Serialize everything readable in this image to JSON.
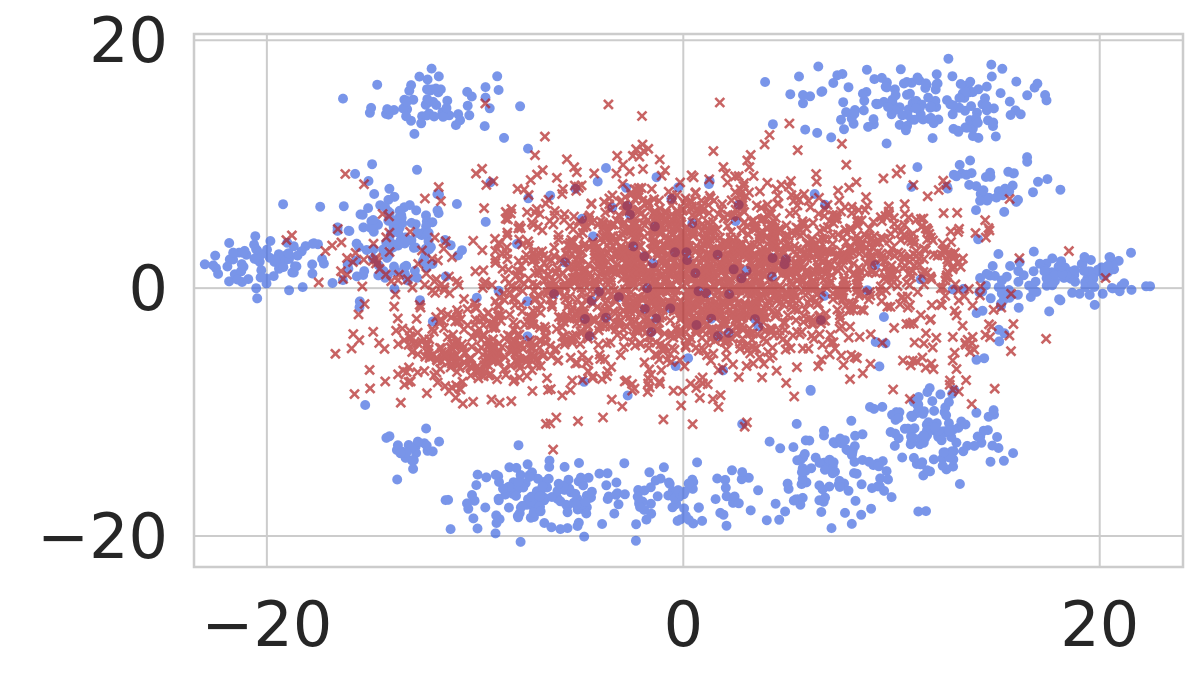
{
  "chart_data": {
    "type": "scatter",
    "title": "",
    "xlabel": "",
    "ylabel": "",
    "xlim": [
      -23.5,
      24.0
    ],
    "ylim": [
      -22.5,
      20.5
    ],
    "x_ticks": [
      {
        "value": -20,
        "label": "−20"
      },
      {
        "value": 0,
        "label": "0"
      },
      {
        "value": 20,
        "label": "20"
      }
    ],
    "y_ticks": [
      {
        "value": 20,
        "label": "20"
      },
      {
        "value": 0,
        "label": "0"
      },
      {
        "value": -20,
        "label": "−20"
      }
    ],
    "grid": true,
    "legend": "none",
    "series": [
      {
        "marker": "circle",
        "color": "#4169E1",
        "alpha": 0.7,
        "clusters": [
          {
            "center": [
              -20,
              2
            ],
            "spread": [
              2.5,
              1.8
            ],
            "count": 70
          },
          {
            "center": [
              -14,
              4
            ],
            "spread": [
              2.5,
              4.0
            ],
            "count": 130
          },
          {
            "center": [
              -12,
              15
            ],
            "spread": [
              2.5,
              2.0
            ],
            "count": 60
          },
          {
            "center": [
              -13,
              -13
            ],
            "spread": [
              1.2,
              1.2
            ],
            "count": 25
          },
          {
            "center": [
              -7,
              -17
            ],
            "spread": [
              3.5,
              2.2
            ],
            "count": 130
          },
          {
            "center": [
              0,
              -17
            ],
            "spread": [
              3.5,
              2.0
            ],
            "count": 70
          },
          {
            "center": [
              7,
              -15
            ],
            "spread": [
              3.0,
              3.0
            ],
            "count": 90
          },
          {
            "center": [
              12,
              -12
            ],
            "spread": [
              3.0,
              3.5
            ],
            "count": 120
          },
          {
            "center": [
              11,
              15
            ],
            "spread": [
              4.5,
              2.5
            ],
            "count": 150
          },
          {
            "center": [
              15,
              8
            ],
            "spread": [
              3.0,
              2.0
            ],
            "count": 40
          },
          {
            "center": [
              19,
              1
            ],
            "spread": [
              2.5,
              1.5
            ],
            "count": 80
          },
          {
            "center": [
              15,
              0
            ],
            "spread": [
              2.0,
              3.0
            ],
            "count": 40
          },
          {
            "center": [
              0,
              0
            ],
            "spread": [
              9.0,
              9.0
            ],
            "count": 90
          }
        ]
      },
      {
        "marker": "x",
        "color": "#B22222",
        "alpha": 0.7,
        "clusters": [
          {
            "center": [
              0,
              1
            ],
            "spread": [
              8.0,
              6.5
            ],
            "count": 1900
          },
          {
            "center": [
              -10,
              -5
            ],
            "spread": [
              4.0,
              3.0
            ],
            "count": 250
          },
          {
            "center": [
              10,
              3
            ],
            "spread": [
              4.0,
              4.0
            ],
            "count": 200
          },
          {
            "center": [
              -15,
              1
            ],
            "spread": [
              3.0,
              4.0
            ],
            "count": 40
          },
          {
            "center": [
              13,
              -5
            ],
            "spread": [
              2.5,
              3.0
            ],
            "count": 40
          },
          {
            "center": [
              0,
              0
            ],
            "spread": [
              12.0,
              10.0
            ],
            "count": 60
          }
        ]
      }
    ]
  }
}
